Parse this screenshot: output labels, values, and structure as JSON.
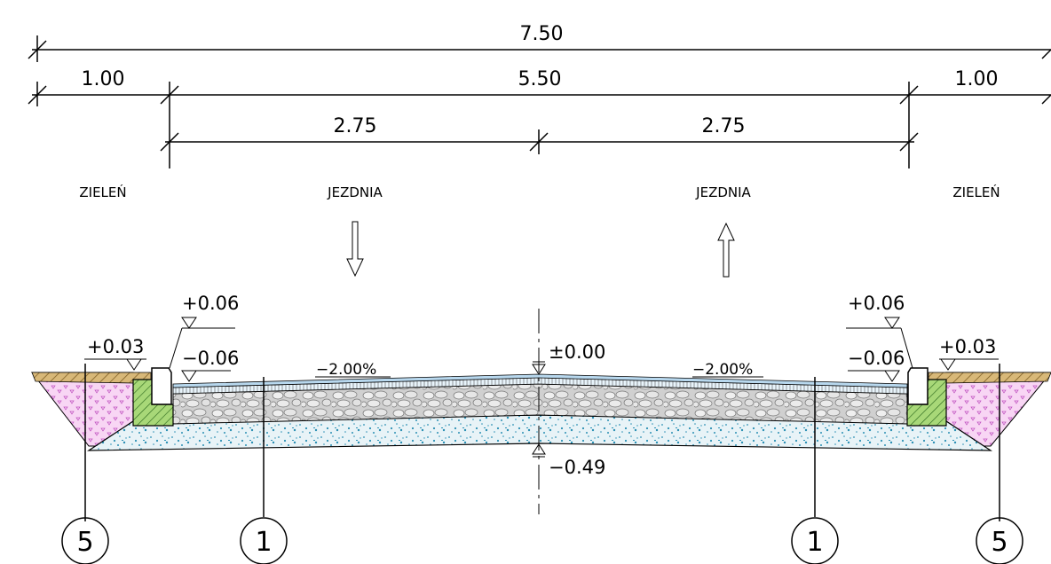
{
  "dimensions": {
    "total": "7.50",
    "left_verge": "1.00",
    "carriageway": "5.50",
    "right_verge": "1.00",
    "left_lane": "2.75",
    "right_lane": "2.75"
  },
  "zones": {
    "left_green": "ZIELEŃ",
    "left_lane": "JEZDNIA",
    "right_lane": "JEZDNIA",
    "right_green": "ZIELEŃ"
  },
  "elevations": {
    "left_curb_top": "+0.06",
    "left_verge": "+0.03",
    "left_gutter": "−0.06",
    "axis_top": "±0.00",
    "axis_bottom": "−0.49",
    "right_curb_top": "+0.06",
    "right_gutter": "−0.06",
    "right_verge": "+0.03"
  },
  "slopes": {
    "left": "−2.00%",
    "right": "−2.00%"
  },
  "callouts": {
    "c1": "5",
    "c2": "1",
    "c3": "1",
    "c4": "5"
  },
  "colors": {
    "asphalt_wearing": "#b8d8ee",
    "aggregate_base": "#c9c9c9",
    "subbase_speckle": "#2a8fb3",
    "soil_fill": "#f3c8f0",
    "topsoil": "#c7a25a",
    "curb_foundation": "#8bc34a"
  }
}
